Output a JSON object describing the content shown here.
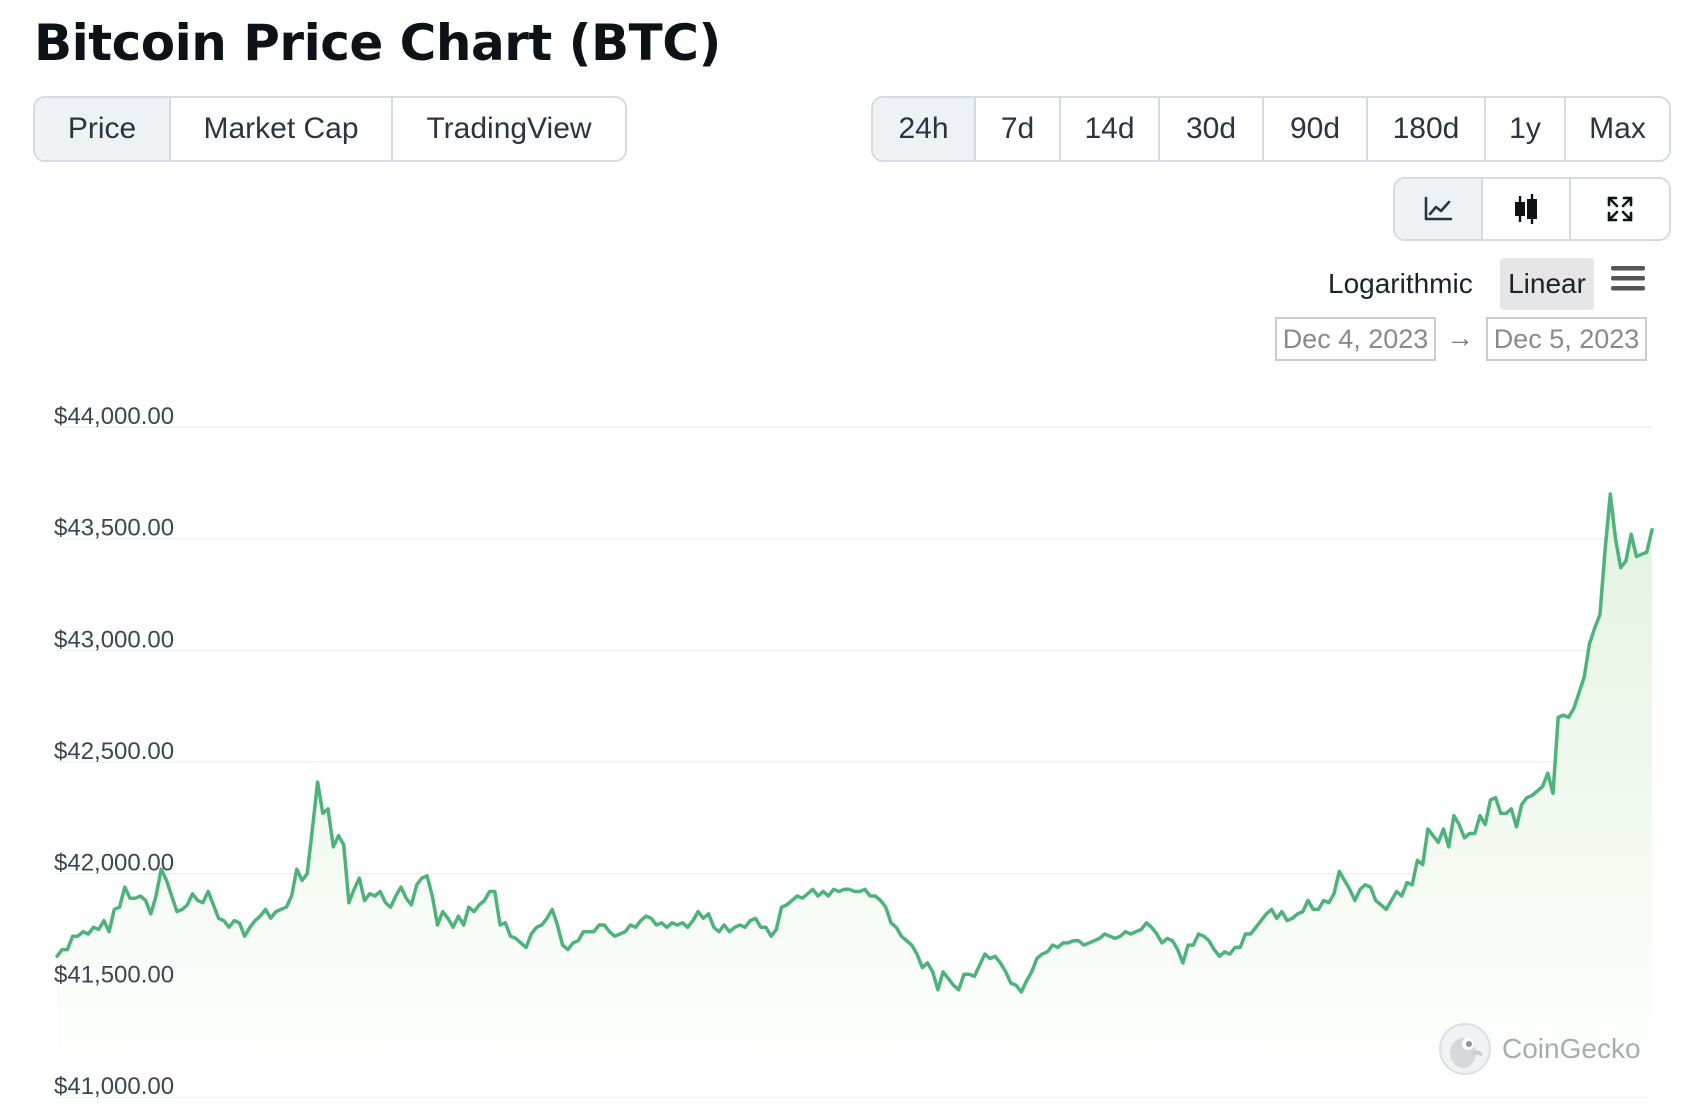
{
  "title": "Bitcoin Price Chart (BTC)",
  "tabs": [
    {
      "label": "Price",
      "active": true
    },
    {
      "label": "Market Cap",
      "active": false
    },
    {
      "label": "TradingView",
      "active": false
    }
  ],
  "ranges": [
    {
      "label": "24h",
      "active": true
    },
    {
      "label": "7d",
      "active": false
    },
    {
      "label": "14d",
      "active": false
    },
    {
      "label": "30d",
      "active": false
    },
    {
      "label": "90d",
      "active": false
    },
    {
      "label": "180d",
      "active": false
    },
    {
      "label": "1y",
      "active": false
    },
    {
      "label": "Max",
      "active": false
    }
  ],
  "view_buttons": [
    {
      "icon": "line-chart-icon",
      "active": true
    },
    {
      "icon": "candlestick-icon",
      "active": false
    },
    {
      "icon": "expand-icon",
      "active": false
    }
  ],
  "scale": {
    "logarithmic": "Logarithmic",
    "linear": "Linear",
    "selected": "Linear"
  },
  "date_range": {
    "from": "Dec 4, 2023",
    "arrow": "→",
    "to": "Dec 5, 2023"
  },
  "watermark": "CoinGecko",
  "colors": {
    "line": "#4eb37b",
    "area_top": "#e3f3df",
    "grid": "#eef0f2",
    "active_tab": "#eff2f5"
  },
  "chart_data": {
    "type": "area",
    "title": "",
    "xlabel": "",
    "ylabel": "",
    "ylim": [
      41000,
      44000
    ],
    "yticks": [
      {
        "value": 44000,
        "label": "$44,000.00"
      },
      {
        "value": 43500,
        "label": "$43,500.00"
      },
      {
        "value": 43000,
        "label": "$43,000.00"
      },
      {
        "value": 42500,
        "label": "$42,500.00"
      },
      {
        "value": 42000,
        "label": "$42,000.00"
      },
      {
        "value": 41500,
        "label": "$41,500.00"
      },
      {
        "value": 41000,
        "label": "$41,000.00"
      }
    ],
    "x_range": [
      "Dec 4, 2023",
      "Dec 5, 2023"
    ],
    "grid": true,
    "legend": "none",
    "series": [
      {
        "values": [
          41630,
          41660,
          41660,
          41720,
          41720,
          41740,
          41730,
          41760,
          41750,
          41790,
          41740,
          41840,
          41850,
          41940,
          41890,
          41890,
          41900,
          41880,
          41820,
          41900,
          42020,
          41970,
          41900,
          41830,
          41840,
          41860,
          41910,
          41880,
          41870,
          41920,
          41860,
          41800,
          41790,
          41760,
          41790,
          41780,
          41720,
          41760,
          41790,
          41810,
          41840,
          41800,
          41830,
          41840,
          41850,
          41900,
          42020,
          41970,
          42000,
          42200,
          42410,
          42270,
          42290,
          42120,
          42170,
          42130,
          41870,
          41930,
          41980,
          41880,
          41910,
          41900,
          41920,
          41870,
          41850,
          41900,
          41940,
          41890,
          41860,
          41950,
          41980,
          41990,
          41900,
          41770,
          41830,
          41800,
          41760,
          41810,
          41770,
          41850,
          41830,
          41860,
          41880,
          41920,
          41920,
          41770,
          41780,
          41720,
          41710,
          41690,
          41670,
          41730,
          41760,
          41770,
          41800,
          41840,
          41770,
          41680,
          41660,
          41690,
          41700,
          41740,
          41740,
          41740,
          41770,
          41770,
          41740,
          41720,
          41730,
          41740,
          41770,
          41760,
          41790,
          41810,
          41800,
          41770,
          41780,
          41760,
          41780,
          41770,
          41780,
          41760,
          41790,
          41830,
          41800,
          41820,
          41760,
          41740,
          41770,
          41740,
          41760,
          41770,
          41760,
          41790,
          41800,
          41760,
          41760,
          41720,
          41750,
          41850,
          41860,
          41880,
          41900,
          41890,
          41910,
          41930,
          41900,
          41920,
          41900,
          41930,
          41920,
          41930,
          41930,
          41920,
          41920,
          41930,
          41900,
          41900,
          41880,
          41850,
          41780,
          41760,
          41720,
          41700,
          41680,
          41640,
          41580,
          41600,
          41560,
          41480,
          41560,
          41530,
          41500,
          41480,
          41550,
          41550,
          41540,
          41590,
          41640,
          41620,
          41630,
          41600,
          41560,
          41510,
          41500,
          41470,
          41520,
          41560,
          41620,
          41640,
          41650,
          41680,
          41670,
          41690,
          41690,
          41700,
          41700,
          41680,
          41690,
          41700,
          41710,
          41730,
          41720,
          41710,
          41720,
          41740,
          41730,
          41740,
          41750,
          41780,
          41760,
          41730,
          41690,
          41710,
          41700,
          41660,
          41600,
          41680,
          41680,
          41730,
          41720,
          41700,
          41660,
          41630,
          41650,
          41640,
          41670,
          41670,
          41730,
          41730,
          41760,
          41790,
          41820,
          41840,
          41800,
          41830,
          41790,
          41800,
          41820,
          41830,
          41880,
          41840,
          41840,
          41880,
          41870,
          41910,
          42010,
          41970,
          41930,
          41880,
          41930,
          41950,
          41940,
          41880,
          41860,
          41840,
          41880,
          41920,
          41900,
          41960,
          41950,
          42060,
          42040,
          42200,
          42170,
          42140,
          42200,
          42120,
          42260,
          42220,
          42160,
          42180,
          42180,
          42260,
          42220,
          42330,
          42340,
          42270,
          42270,
          42290,
          42210,
          42310,
          42340,
          42350,
          42370,
          42390,
          42450,
          42360,
          42700,
          42710,
          42700,
          42740,
          42810,
          42880,
          43030,
          43100,
          43160,
          43450,
          43700,
          43500,
          43370,
          43400,
          43520,
          43420,
          43430,
          43440,
          43540
        ]
      }
    ]
  }
}
